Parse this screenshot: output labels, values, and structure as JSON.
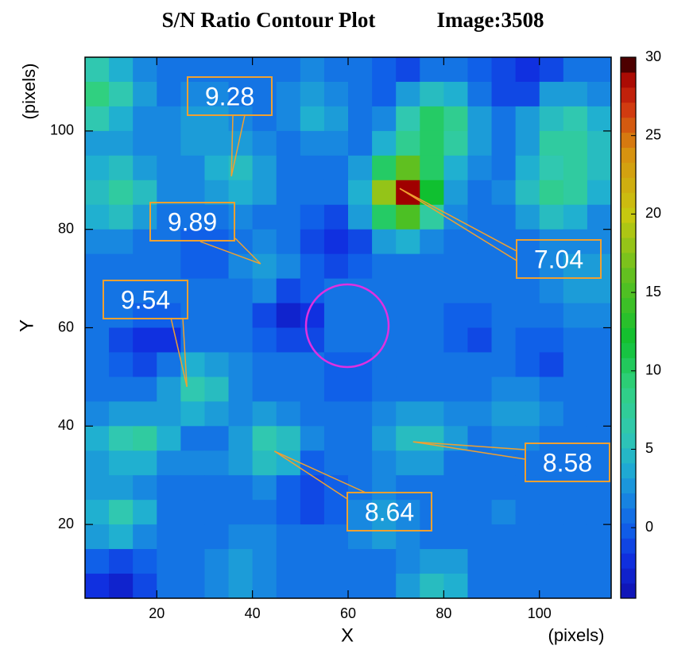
{
  "chart_data": {
    "type": "heatmap",
    "title": "S/N Ratio Contour Plot",
    "image_label": "Image:3508",
    "x_label": "X",
    "x_unit": "(pixels)",
    "y_label": "Y",
    "y_unit": "(pixels)",
    "xlim": [
      5,
      115
    ],
    "xticks": [
      20,
      40,
      60,
      80,
      100
    ],
    "ylim": [
      5,
      115
    ],
    "yticks": [
      20,
      40,
      60,
      80,
      100
    ],
    "zlim": [
      -4.5,
      30
    ],
    "zticks": [
      0,
      5,
      10,
      15,
      20,
      25,
      30
    ],
    "colormap": [
      [
        -4.5,
        "#1010b0"
      ],
      [
        -2,
        "#1030e0"
      ],
      [
        0,
        "#1060e8"
      ],
      [
        2,
        "#1888e0"
      ],
      [
        4,
        "#20b0d0"
      ],
      [
        6,
        "#30c8b0"
      ],
      [
        9,
        "#30d080"
      ],
      [
        12,
        "#10c030"
      ],
      [
        16,
        "#60c020"
      ],
      [
        20,
        "#c8c810"
      ],
      [
        24,
        "#d89010"
      ],
      [
        27,
        "#d03010"
      ],
      [
        29,
        "#a00000"
      ],
      [
        30,
        "#000000"
      ]
    ],
    "x": [
      7.5,
      12.5,
      17.5,
      22.5,
      27.5,
      32.5,
      37.5,
      42.5,
      47.5,
      52.5,
      57.5,
      62.5,
      67.5,
      72.5,
      77.5,
      82.5,
      87.5,
      92.5,
      97.5,
      102.5,
      107.5,
      112.5
    ],
    "y": [
      112.5,
      107.5,
      102.5,
      97.5,
      92.5,
      87.5,
      82.5,
      77.5,
      72.5,
      67.5,
      62.5,
      57.5,
      52.5,
      47.5,
      42.5,
      37.5,
      32.5,
      27.5,
      22.5,
      17.5,
      12.5,
      7.5
    ],
    "z": [
      [
        6,
        4,
        2,
        1,
        1,
        1,
        1,
        1,
        1,
        2,
        1,
        1,
        0,
        -1,
        1,
        1,
        0,
        -1,
        -2,
        -1,
        1,
        1
      ],
      [
        9,
        6,
        3,
        1,
        2,
        2,
        1,
        1,
        2,
        3,
        2,
        1,
        0,
        3,
        5,
        4,
        1,
        -1,
        -1,
        3,
        3,
        2
      ],
      [
        6,
        4,
        2,
        2,
        3,
        3,
        2,
        1,
        2,
        4,
        3,
        1,
        2,
        6,
        10,
        8,
        3,
        1,
        3,
        5,
        6,
        4
      ],
      [
        3,
        3,
        2,
        2,
        3,
        3,
        3,
        2,
        1,
        2,
        2,
        1,
        4,
        8,
        10,
        7,
        3,
        1,
        3,
        7,
        7,
        5
      ],
      [
        4,
        5,
        3,
        2,
        2,
        4,
        5,
        3,
        1,
        1,
        1,
        3,
        10,
        16,
        10,
        4,
        2,
        1,
        4,
        6,
        7,
        5
      ],
      [
        5,
        7,
        5,
        2,
        2,
        3,
        4,
        3,
        1,
        1,
        1,
        4,
        18,
        29,
        12,
        3,
        1,
        2,
        5,
        8,
        7,
        4
      ],
      [
        4,
        5,
        3,
        1,
        1,
        1,
        2,
        1,
        1,
        0,
        -1,
        3,
        10,
        15,
        7,
        2,
        1,
        1,
        3,
        5,
        4,
        2
      ],
      [
        2,
        2,
        1,
        1,
        0,
        0,
        1,
        2,
        1,
        -1,
        -2,
        -1,
        3,
        4,
        2,
        1,
        1,
        1,
        1,
        2,
        2,
        2
      ],
      [
        1,
        1,
        1,
        1,
        0,
        0,
        2,
        3,
        2,
        0,
        -1,
        0,
        1,
        1,
        1,
        1,
        1,
        1,
        1,
        2,
        3,
        3
      ],
      [
        1,
        1,
        1,
        1,
        1,
        1,
        1,
        2,
        -1,
        0,
        1,
        1,
        1,
        1,
        1,
        1,
        1,
        1,
        1,
        2,
        3,
        3
      ],
      [
        1,
        1,
        0,
        0,
        1,
        1,
        1,
        -1,
        -3,
        -2,
        1,
        1,
        1,
        1,
        1,
        0,
        0,
        1,
        1,
        1,
        2,
        2
      ],
      [
        1,
        -1,
        -2,
        -2,
        1,
        1,
        1,
        0,
        -1,
        -1,
        1,
        1,
        1,
        1,
        1,
        0,
        -1,
        1,
        0,
        0,
        1,
        1
      ],
      [
        1,
        0,
        -1,
        1,
        4,
        3,
        2,
        1,
        1,
        1,
        0,
        0,
        1,
        1,
        1,
        1,
        1,
        1,
        0,
        -1,
        1,
        1
      ],
      [
        1,
        1,
        1,
        3,
        6,
        5,
        2,
        1,
        1,
        1,
        0,
        0,
        1,
        1,
        1,
        1,
        1,
        2,
        2,
        1,
        1,
        1
      ],
      [
        2,
        3,
        3,
        3,
        4,
        3,
        2,
        3,
        2,
        1,
        1,
        1,
        2,
        3,
        3,
        2,
        2,
        3,
        3,
        2,
        1,
        1
      ],
      [
        4,
        6,
        7,
        4,
        1,
        1,
        3,
        6,
        5,
        2,
        1,
        1,
        3,
        5,
        5,
        3,
        1,
        2,
        2,
        1,
        1,
        1
      ],
      [
        3,
        4,
        4,
        2,
        2,
        2,
        3,
        5,
        4,
        0,
        1,
        1,
        2,
        3,
        3,
        1,
        1,
        1,
        1,
        1,
        1,
        1
      ],
      [
        3,
        3,
        2,
        1,
        1,
        1,
        1,
        2,
        0,
        -1,
        0,
        1,
        2,
        1,
        1,
        1,
        1,
        1,
        1,
        1,
        1,
        1
      ],
      [
        4,
        6,
        4,
        1,
        1,
        1,
        1,
        1,
        0,
        -1,
        0,
        2,
        3,
        2,
        1,
        1,
        1,
        2,
        1,
        1,
        1,
        1
      ],
      [
        3,
        4,
        2,
        1,
        1,
        1,
        2,
        2,
        1,
        1,
        1,
        2,
        3,
        2,
        1,
        1,
        1,
        1,
        1,
        1,
        1,
        1
      ],
      [
        0,
        -1,
        0,
        1,
        1,
        2,
        3,
        2,
        1,
        1,
        1,
        1,
        1,
        2,
        3,
        3,
        1,
        1,
        1,
        1,
        1,
        1
      ],
      [
        -2,
        -3,
        -1,
        1,
        1,
        2,
        3,
        2,
        1,
        1,
        1,
        1,
        1,
        3,
        5,
        4,
        1,
        1,
        1,
        1,
        1,
        1
      ]
    ],
    "annotations": [
      {
        "text": "9.28",
        "x": 35.6,
        "y": 90.8
      },
      {
        "text": "9.89",
        "x": 41.7,
        "y": 73
      },
      {
        "text": "9.54",
        "x": 26.3,
        "y": 48
      },
      {
        "text": "7.04",
        "x": 70.8,
        "y": 88.3
      },
      {
        "text": "8.58",
        "x": 73.6,
        "y": 36.8
      },
      {
        "text": "8.64",
        "x": 44.6,
        "y": 34.9
      }
    ]
  }
}
